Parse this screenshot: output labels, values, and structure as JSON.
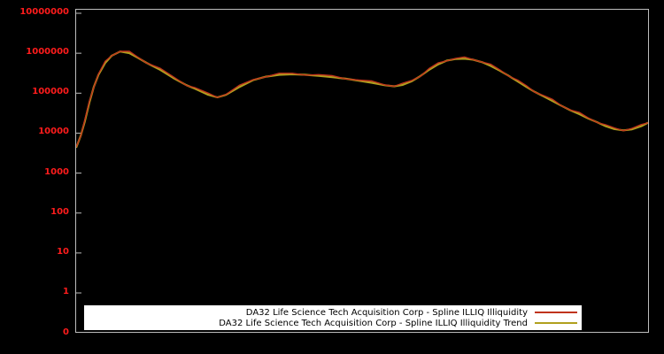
{
  "chart_data": {
    "type": "line",
    "title": "",
    "xlabel": "",
    "ylabel": "",
    "x_axis": {
      "tick_labels": []
    },
    "y_axis": {
      "scale": "log",
      "tick_labels": [
        "10000000",
        "1000000",
        "100000",
        "10000",
        "1000",
        "100",
        "10",
        "1",
        "0"
      ],
      "tick_color": "#ff1c1c"
    },
    "background": "#000000",
    "plot_border_color": "#bdbdbd",
    "legend_position": "bottom-center",
    "grid": false,
    "series": [
      {
        "name": "DA32 Life Science Tech Acquisition Corp - Spline ILLIQ Illiquidity",
        "color": "#c0341d",
        "points": [
          [
            0.0,
            4500
          ],
          [
            0.008,
            9000
          ],
          [
            0.015,
            20000
          ],
          [
            0.023,
            60000
          ],
          [
            0.031,
            150000
          ],
          [
            0.039,
            300000
          ],
          [
            0.051,
            600000
          ],
          [
            0.062,
            900000
          ],
          [
            0.077,
            1150000
          ],
          [
            0.093,
            1050000
          ],
          [
            0.108,
            800000
          ],
          [
            0.123,
            600000
          ],
          [
            0.147,
            400000
          ],
          [
            0.17,
            250000
          ],
          [
            0.193,
            165000
          ],
          [
            0.208,
            135000
          ],
          [
            0.231,
            95000
          ],
          [
            0.247,
            82000
          ],
          [
            0.262,
            95000
          ],
          [
            0.286,
            150000
          ],
          [
            0.309,
            220000
          ],
          [
            0.332,
            270000
          ],
          [
            0.355,
            300000
          ],
          [
            0.378,
            310000
          ],
          [
            0.401,
            300000
          ],
          [
            0.424,
            285000
          ],
          [
            0.448,
            262000
          ],
          [
            0.471,
            240000
          ],
          [
            0.494,
            215000
          ],
          [
            0.517,
            190000
          ],
          [
            0.54,
            165000
          ],
          [
            0.556,
            155000
          ],
          [
            0.571,
            168000
          ],
          [
            0.586,
            205000
          ],
          [
            0.602,
            280000
          ],
          [
            0.617,
            400000
          ],
          [
            0.633,
            550000
          ],
          [
            0.648,
            680000
          ],
          [
            0.664,
            750000
          ],
          [
            0.679,
            760000
          ],
          [
            0.694,
            720000
          ],
          [
            0.71,
            620000
          ],
          [
            0.725,
            500000
          ],
          [
            0.741,
            380000
          ],
          [
            0.756,
            285000
          ],
          [
            0.772,
            205000
          ],
          [
            0.787,
            150000
          ],
          [
            0.802,
            112000
          ],
          [
            0.818,
            86000
          ],
          [
            0.833,
            66000
          ],
          [
            0.849,
            50000
          ],
          [
            0.864,
            39000
          ],
          [
            0.88,
            31000
          ],
          [
            0.895,
            24500
          ],
          [
            0.911,
            19500
          ],
          [
            0.926,
            15500
          ],
          [
            0.941,
            13200
          ],
          [
            0.957,
            12200
          ],
          [
            0.972,
            13000
          ],
          [
            0.988,
            15500
          ],
          [
            1.0,
            19000
          ]
        ]
      },
      {
        "name": "DA32 Life Science Tech Acquisition Corp - Spline ILLIQ Illiquidity Trend",
        "color": "#b0a01e",
        "points": [
          [
            0.0,
            4500
          ],
          [
            0.008,
            9000
          ],
          [
            0.015,
            20000
          ],
          [
            0.023,
            60000
          ],
          [
            0.031,
            150000
          ],
          [
            0.039,
            300000
          ],
          [
            0.051,
            600000
          ],
          [
            0.062,
            900000
          ],
          [
            0.077,
            1150000
          ],
          [
            0.093,
            1050000
          ],
          [
            0.108,
            800000
          ],
          [
            0.123,
            600000
          ],
          [
            0.147,
            400000
          ],
          [
            0.17,
            250000
          ],
          [
            0.193,
            165000
          ],
          [
            0.208,
            135000
          ],
          [
            0.231,
            95000
          ],
          [
            0.247,
            82000
          ],
          [
            0.262,
            95000
          ],
          [
            0.286,
            150000
          ],
          [
            0.309,
            220000
          ],
          [
            0.332,
            270000
          ],
          [
            0.355,
            300000
          ],
          [
            0.378,
            310000
          ],
          [
            0.401,
            300000
          ],
          [
            0.424,
            285000
          ],
          [
            0.448,
            262000
          ],
          [
            0.471,
            240000
          ],
          [
            0.494,
            215000
          ],
          [
            0.517,
            190000
          ],
          [
            0.54,
            165000
          ],
          [
            0.556,
            155000
          ],
          [
            0.571,
            168000
          ],
          [
            0.586,
            205000
          ],
          [
            0.602,
            280000
          ],
          [
            0.617,
            400000
          ],
          [
            0.633,
            550000
          ],
          [
            0.648,
            680000
          ],
          [
            0.664,
            750000
          ],
          [
            0.679,
            760000
          ],
          [
            0.694,
            720000
          ],
          [
            0.71,
            620000
          ],
          [
            0.725,
            500000
          ],
          [
            0.741,
            380000
          ],
          [
            0.756,
            285000
          ],
          [
            0.772,
            205000
          ],
          [
            0.787,
            150000
          ],
          [
            0.802,
            112000
          ],
          [
            0.818,
            86000
          ],
          [
            0.833,
            66000
          ],
          [
            0.849,
            50000
          ],
          [
            0.864,
            39000
          ],
          [
            0.88,
            31000
          ],
          [
            0.895,
            24500
          ],
          [
            0.911,
            19500
          ],
          [
            0.926,
            15500
          ],
          [
            0.941,
            13200
          ],
          [
            0.957,
            12200
          ],
          [
            0.972,
            13000
          ],
          [
            0.988,
            15500
          ],
          [
            1.0,
            19000
          ]
        ]
      }
    ]
  }
}
